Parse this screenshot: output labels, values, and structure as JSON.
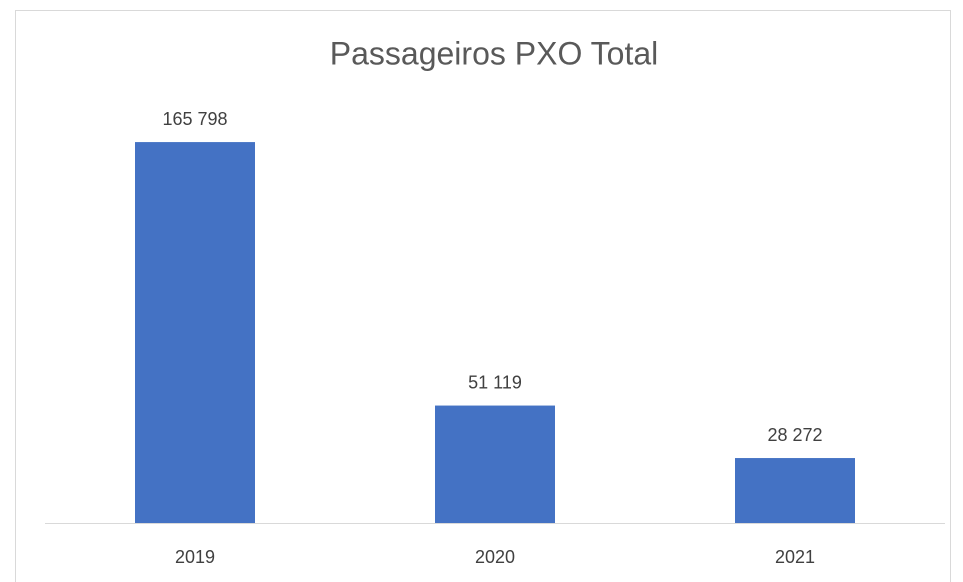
{
  "chart_data": {
    "type": "bar",
    "title": "Passageiros PXO Total",
    "categories": [
      "2019",
      "2020",
      "2021"
    ],
    "values": [
      165798,
      51119,
      28272
    ],
    "value_labels": [
      "165 798",
      "51 119",
      "28 272"
    ],
    "color": "#4472c4",
    "ylim": [
      0,
      200000
    ]
  }
}
